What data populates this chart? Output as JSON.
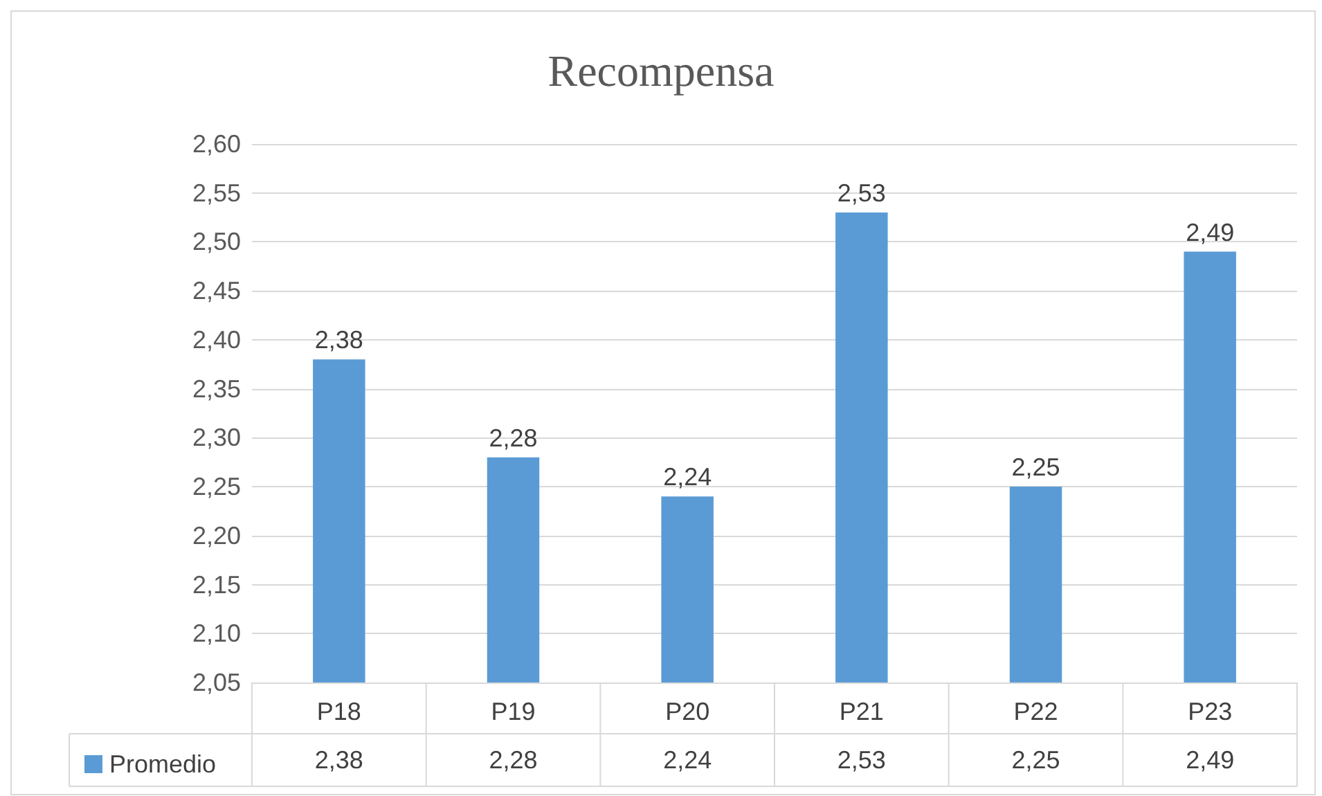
{
  "chart_data": {
    "type": "bar",
    "title": "Recompensa",
    "categories": [
      "P18",
      "P19",
      "P20",
      "P21",
      "P22",
      "P23"
    ],
    "series": [
      {
        "name": "Promedio",
        "color": "#5b9bd5",
        "values": [
          2.38,
          2.28,
          2.24,
          2.53,
          2.25,
          2.49
        ],
        "value_labels": [
          "2,38",
          "2,28",
          "2,24",
          "2,53",
          "2,25",
          "2,49"
        ]
      }
    ],
    "ylim": [
      2.05,
      2.6
    ],
    "yticks": [
      {
        "value": 2.05,
        "label": "2,05"
      },
      {
        "value": 2.1,
        "label": "2,10"
      },
      {
        "value": 2.15,
        "label": "2,15"
      },
      {
        "value": 2.2,
        "label": "2,20"
      },
      {
        "value": 2.25,
        "label": "2,25"
      },
      {
        "value": 2.3,
        "label": "2,30"
      },
      {
        "value": 2.35,
        "label": "2,35"
      },
      {
        "value": 2.4,
        "label": "2,40"
      },
      {
        "value": 2.45,
        "label": "2,45"
      },
      {
        "value": 2.5,
        "label": "2,50"
      },
      {
        "value": 2.55,
        "label": "2,55"
      },
      {
        "value": 2.6,
        "label": "2,60"
      }
    ],
    "grid": "y",
    "legend": "bottom left"
  }
}
